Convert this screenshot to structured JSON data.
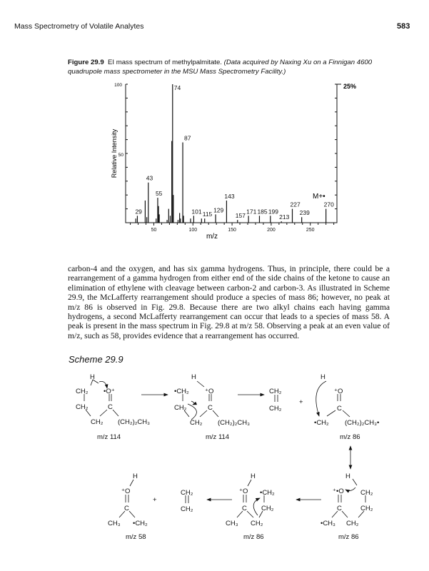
{
  "header": {
    "running_title": "Mass Spectrometry of Volatile Analytes",
    "page_number": "583"
  },
  "figure": {
    "label": "Figure 29.9",
    "caption": "EI mass spectrum of methylpalmitate.",
    "credit": "(Data acquired by Naxing Xu on a Finnigan 4600 quadrupole mass spectrometer in the MSU Mass Spectrometry Facility.)"
  },
  "chart_data": {
    "type": "bar",
    "xlabel": "m/z",
    "ylabel": "Relative Intensity",
    "xlim": [
      14,
      284
    ],
    "ylim": [
      0,
      100
    ],
    "x_ticks": [
      50,
      100,
      150,
      200,
      250
    ],
    "y_ticks": [
      100,
      50
    ],
    "right_axis_label": "25%",
    "molecular_ion_label": "M+•",
    "peaks": [
      {
        "mz": 27,
        "intensity": 3
      },
      {
        "mz": 29,
        "intensity": 5,
        "label": "29"
      },
      {
        "mz": 39,
        "intensity": 16
      },
      {
        "mz": 41,
        "intensity": 4
      },
      {
        "mz": 43,
        "intensity": 29,
        "label": "43"
      },
      {
        "mz": 53,
        "intensity": 3
      },
      {
        "mz": 55,
        "intensity": 18,
        "label": "55"
      },
      {
        "mz": 56,
        "intensity": 12
      },
      {
        "mz": 57,
        "intensity": 6
      },
      {
        "mz": 67,
        "intensity": 2
      },
      {
        "mz": 69,
        "intensity": 10
      },
      {
        "mz": 71,
        "intensity": 5
      },
      {
        "mz": 73,
        "intensity": 59
      },
      {
        "mz": 74,
        "intensity": 100,
        "label": "74"
      },
      {
        "mz": 75,
        "intensity": 20
      },
      {
        "mz": 81,
        "intensity": 2
      },
      {
        "mz": 83,
        "intensity": 7
      },
      {
        "mz": 84,
        "intensity": 3
      },
      {
        "mz": 87,
        "intensity": 58,
        "label": "87"
      },
      {
        "mz": 88,
        "intensity": 5
      },
      {
        "mz": 97,
        "intensity": 3
      },
      {
        "mz": 101,
        "intensity": 5,
        "label": "101"
      },
      {
        "mz": 111,
        "intensity": 3
      },
      {
        "mz": 115,
        "intensity": 3,
        "label": "115"
      },
      {
        "mz": 129,
        "intensity": 6,
        "label": "129"
      },
      {
        "mz": 143,
        "intensity": 16,
        "label": "143"
      },
      {
        "mz": 157,
        "intensity": 2,
        "label": "157"
      },
      {
        "mz": 171,
        "intensity": 5,
        "label": "171"
      },
      {
        "mz": 185,
        "intensity": 5,
        "label": "185"
      },
      {
        "mz": 199,
        "intensity": 5,
        "label": "199"
      },
      {
        "mz": 213,
        "intensity": 1,
        "label": "213"
      },
      {
        "mz": 227,
        "intensity": 10,
        "label": "227"
      },
      {
        "mz": 239,
        "intensity": 4,
        "label": "239"
      },
      {
        "mz": 270,
        "intensity": 10,
        "label": "270"
      }
    ]
  },
  "body_text": "carbon-4 and the oxygen, and has six gamma hydrogens. Thus, in principle, there could be a rearrangement of a gamma hydrogen from either end of the side chains of the ketone to cause an elimination of ethylene with cleavage between carbon-2 and carbon-3. As illustrated in Scheme 29.9, the McLafferty rearrangement should produce a species of mass 86; however, no peak at m/z 86 is observed in Fig. 29.8. Because there are two alkyl chains each having gamma hydrogens, a second McLafferty rearrangement can occur that leads to a species of mass 58. A peak is present in the mass spectrum in Fig. 29.8 at m/z 58. Observing a peak at an even value of m/z, such as 58, provides evidence that a rearrangement has occurred.",
  "scheme": {
    "title": "Scheme 29.9",
    "s1": {
      "h": "H",
      "ch2a": "CH₂",
      "o": "•O⁺",
      "ch2b": "CH₂",
      "c": "C",
      "ch2c": "CH₂",
      "r": "(CH₂)₂CH₃",
      "mz": "m/z 114"
    },
    "s2": {
      "h": "H",
      "ch2a": "•CH₂",
      "o": "⁺O",
      "ch2b": "CH₂",
      "c": "C",
      "ch2c": "CH₂",
      "r": "(CH₂)₂CH₃",
      "mz": "m/z 114"
    },
    "ethylene": {
      "top": "CH₂",
      "bottom": "CH₂"
    },
    "plus": "+",
    "s3": {
      "h": "H",
      "o": "⁺O",
      "c": "C",
      "ch2": "•CH₂",
      "r": "(CH₂)₂CH₃•",
      "mz": "m/z 86"
    },
    "sA": {
      "h": "H",
      "o": "⁺O",
      "c": "C",
      "ch3": "CH₃",
      "ch2": "•CH₂",
      "mz": "m/z 58"
    },
    "sB": {
      "h": "H",
      "o": "⁺O",
      "ch2a": "•CH₂",
      "c": "C",
      "ch2b": "CH₂",
      "ch3": "CH₃",
      "ch2c": "CH₂",
      "mz": "m/z 86"
    },
    "sC": {
      "h": "H",
      "o": "⁺•O",
      "ch2a": "CH₂",
      "c": "C",
      "ch2b": "CH₂",
      "ch3": "•CH₃",
      "ch2c": "CH₂",
      "mz": "m/z 86"
    }
  }
}
